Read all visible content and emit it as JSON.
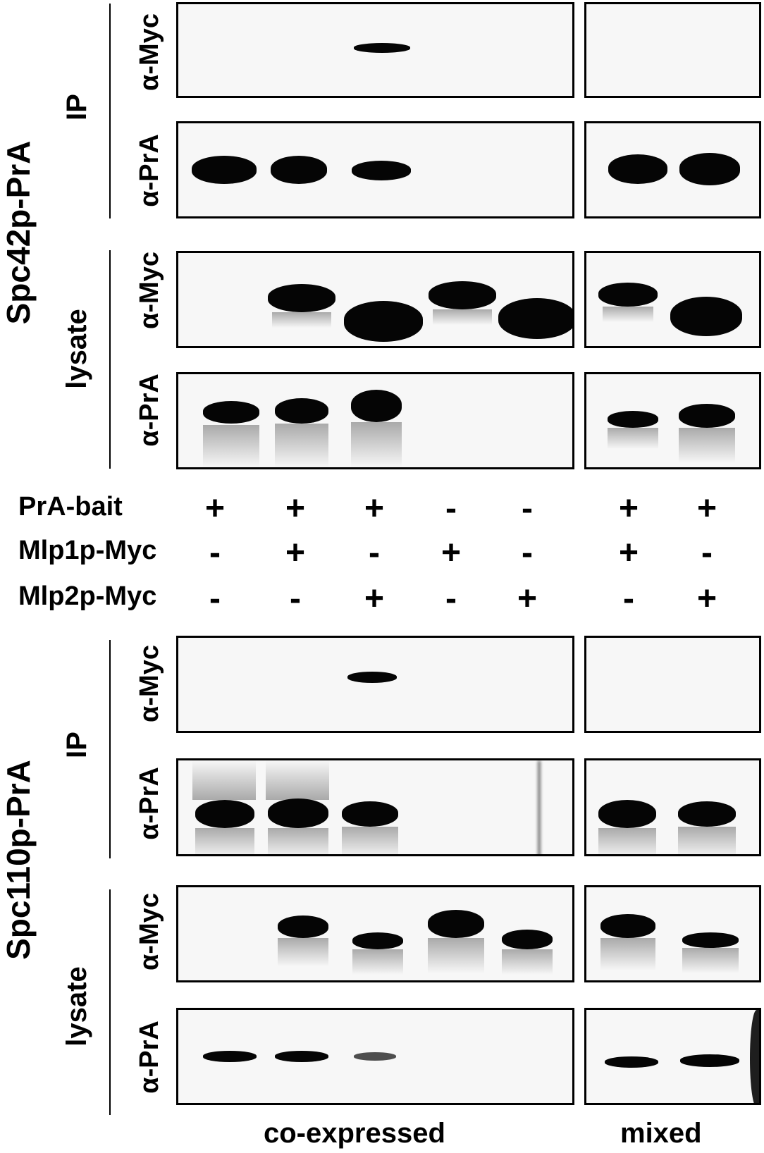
{
  "strains": [
    "Spc42p-PrA",
    "Spc110p-PrA"
  ],
  "groups": [
    "IP",
    "lysate"
  ],
  "antibodies": [
    "α-Myc",
    "α-PrA"
  ],
  "conditions": {
    "rows": [
      {
        "label": "PrA-bait",
        "values": [
          "+",
          "+",
          "+",
          "-",
          "-",
          "+",
          "+"
        ]
      },
      {
        "label": "Mlp1p-Myc",
        "values": [
          "-",
          "+",
          "-",
          "+",
          "-",
          "+",
          "-"
        ]
      },
      {
        "label": "Mlp2p-Myc",
        "values": [
          "-",
          "-",
          "+",
          "-",
          "+",
          "-",
          "+"
        ]
      }
    ]
  },
  "footer": {
    "left": "co-expressed",
    "right": "mixed"
  }
}
